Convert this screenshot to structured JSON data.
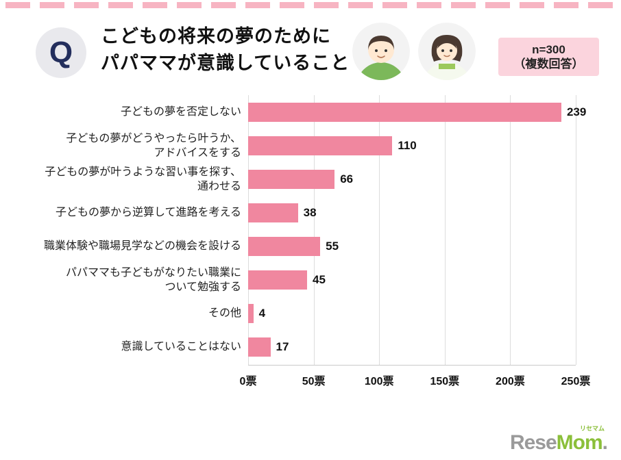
{
  "header": {
    "q_label": "Q",
    "title_line1": "こどもの将来の夢のために",
    "title_line2": "パパママが意識していること",
    "badge_line1": "n=300",
    "badge_line2": "（複数回答）"
  },
  "chart_data": {
    "type": "bar",
    "orientation": "horizontal",
    "title": "こどもの将来の夢のためにパパママが意識していること",
    "categories": [
      "子どもの夢を否定しない",
      "子どもの夢がどうやったら叶うか、\nアドバイスをする",
      "子どもの夢が叶うような習い事を探す、\n通わせる",
      "子どもの夢から逆算して進路を考える",
      "職業体験や職場見学などの機会を設ける",
      "パパママも子どもがなりたい職業に\nついて勉強する",
      "その他",
      "意識していることはない"
    ],
    "values": [
      239,
      110,
      66,
      38,
      55,
      45,
      4,
      17
    ],
    "x_ticks": [
      "0票",
      "50票",
      "100票",
      "150票",
      "200票",
      "250票"
    ],
    "xlim": [
      0,
      250
    ],
    "x_unit": "票",
    "grid": true,
    "bar_color": "#f0879f",
    "accent_pink": "#f7b4c2",
    "badge_bg": "#fbd4dd"
  },
  "footer": {
    "logo_small": "リセマム",
    "logo_rese": "Rese",
    "logo_mom": "Mom",
    "logo_dot": "."
  }
}
